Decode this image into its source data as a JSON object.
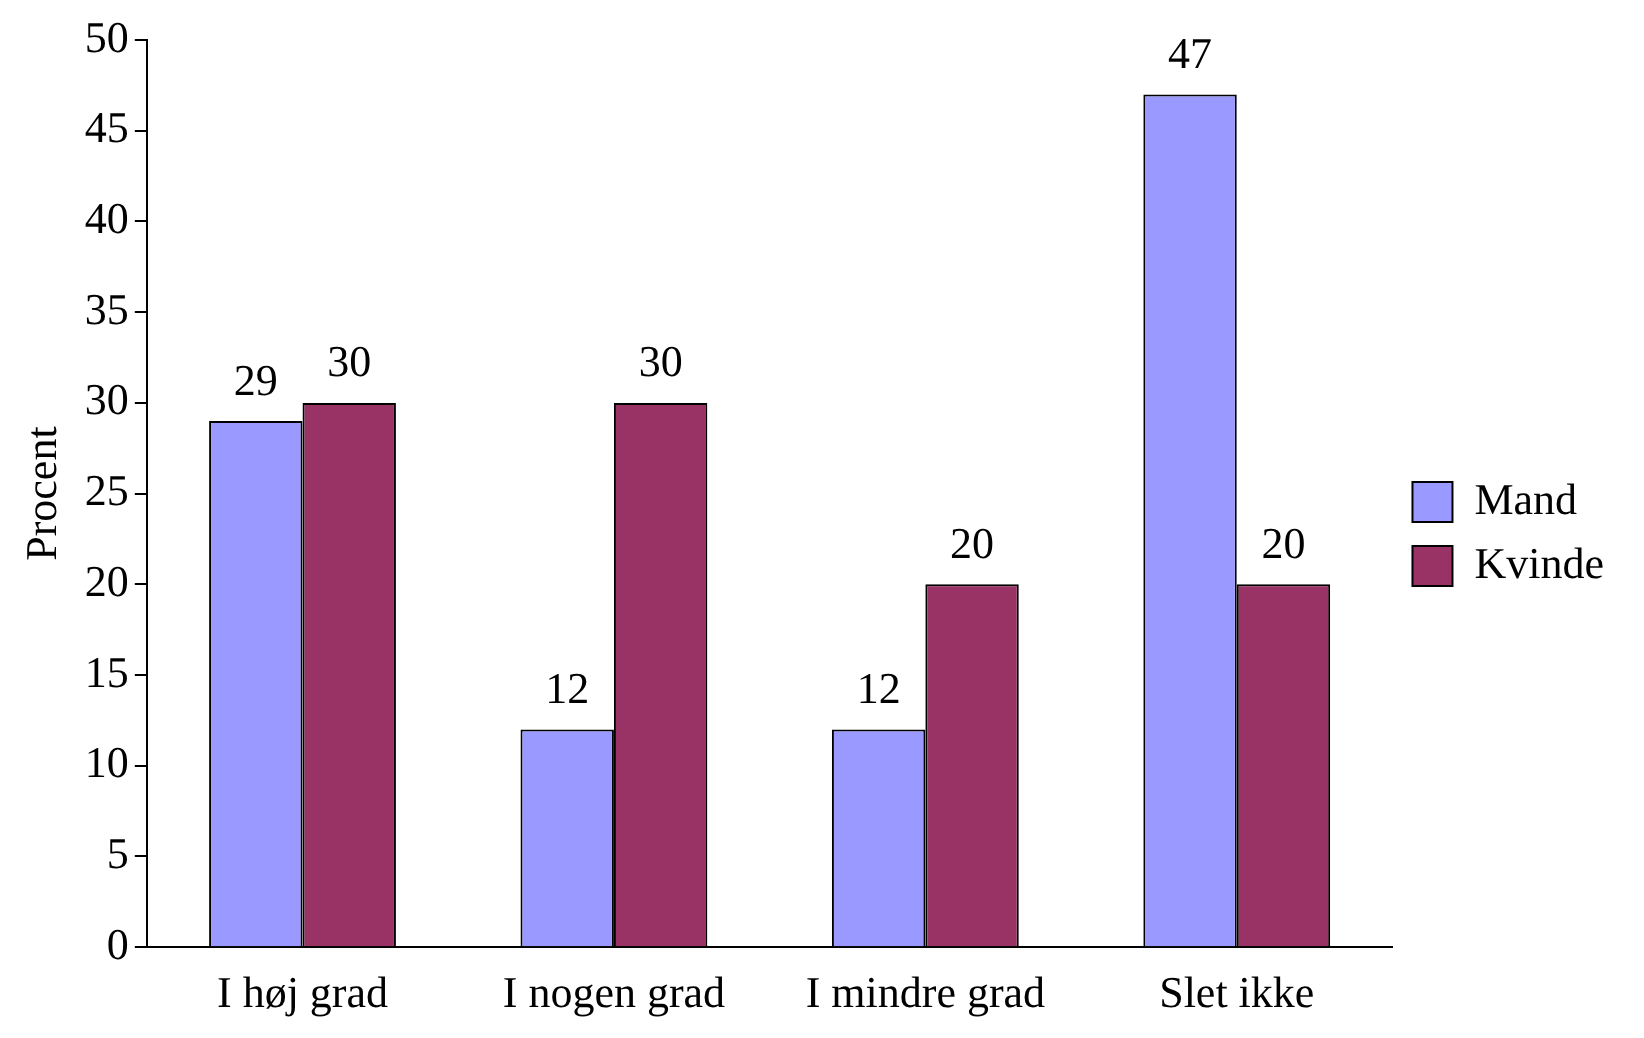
{
  "chart_data": {
    "type": "bar",
    "ylabel": "Procent",
    "categories": [
      "I høj grad",
      "I nogen grad",
      "I mindre grad",
      "Slet ikke"
    ],
    "series": [
      {
        "name": "Mand",
        "color": "#9999ff",
        "values": [
          29,
          12,
          12,
          47
        ]
      },
      {
        "name": "Kvinde",
        "color": "#993366",
        "values": [
          30,
          30,
          20,
          20
        ]
      }
    ],
    "ylim": [
      0,
      50
    ],
    "yticks": [
      0,
      5,
      10,
      15,
      20,
      25,
      30,
      35,
      40,
      45,
      50
    ],
    "grid": false,
    "legend": "right",
    "data_labels": true
  }
}
